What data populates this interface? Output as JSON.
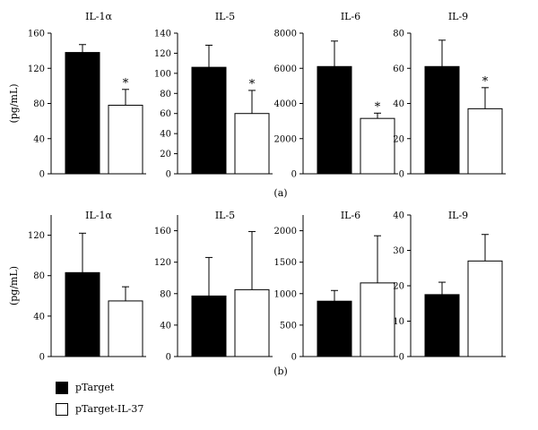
{
  "legend": {
    "items": [
      {
        "label": "pTarget",
        "color": "#000000"
      },
      {
        "label": "pTarget-IL-37",
        "color": "#ffffff"
      }
    ]
  },
  "panel_labels": [
    "(a)",
    "(b)"
  ],
  "chart_data": [
    {
      "type": "bar",
      "panel": "(a)",
      "title": "IL-1α",
      "ylabel": "(pg/mL)",
      "categories": [
        "pTarget",
        "pTarget-IL-37"
      ],
      "values": [
        138,
        78
      ],
      "errors": [
        9,
        18
      ],
      "ylim": [
        0,
        160
      ],
      "yticks": [
        0,
        40,
        80,
        120,
        160
      ],
      "significant": [
        false,
        true
      ]
    },
    {
      "type": "bar",
      "panel": "(a)",
      "title": "IL-5",
      "ylabel": "",
      "categories": [
        "pTarget",
        "pTarget-IL-37"
      ],
      "values": [
        106,
        60
      ],
      "errors": [
        22,
        23
      ],
      "ylim": [
        0,
        140
      ],
      "yticks": [
        0,
        20,
        40,
        60,
        80,
        100,
        120,
        140
      ],
      "significant": [
        false,
        true
      ]
    },
    {
      "type": "bar",
      "panel": "(a)",
      "title": "IL-6",
      "ylabel": "",
      "categories": [
        "pTarget",
        "pTarget-IL-37"
      ],
      "values": [
        6100,
        3150
      ],
      "errors": [
        1450,
        300
      ],
      "ylim": [
        0,
        8000
      ],
      "yticks": [
        0,
        2000,
        4000,
        6000,
        8000
      ],
      "significant": [
        false,
        true
      ]
    },
    {
      "type": "bar",
      "panel": "(a)",
      "title": "IL-9",
      "ylabel": "",
      "categories": [
        "pTarget",
        "pTarget-IL-37"
      ],
      "values": [
        61,
        37
      ],
      "errors": [
        15,
        12
      ],
      "ylim": [
        0,
        80
      ],
      "yticks": [
        0,
        20,
        40,
        60,
        80
      ],
      "significant": [
        false,
        true
      ]
    },
    {
      "type": "bar",
      "panel": "(b)",
      "title": "IL-1α",
      "ylabel": "(pg/mL)",
      "categories": [
        "pTarget",
        "pTarget-IL-37"
      ],
      "values": [
        83,
        55
      ],
      "errors": [
        39,
        14
      ],
      "ylim": [
        0,
        140
      ],
      "yticks": [
        0,
        40,
        80,
        120
      ],
      "significant": [
        false,
        false
      ]
    },
    {
      "type": "bar",
      "panel": "(b)",
      "title": "IL-5",
      "ylabel": "",
      "categories": [
        "pTarget",
        "pTarget-IL-37"
      ],
      "values": [
        77,
        85
      ],
      "errors": [
        49,
        74
      ],
      "ylim": [
        0,
        180
      ],
      "yticks": [
        0,
        40,
        80,
        120,
        160
      ],
      "significant": [
        false,
        false
      ]
    },
    {
      "type": "bar",
      "panel": "(b)",
      "title": "IL-6",
      "ylabel": "",
      "categories": [
        "pTarget",
        "pTarget-IL-37"
      ],
      "values": [
        880,
        1170
      ],
      "errors": [
        170,
        750
      ],
      "ylim": [
        0,
        2250
      ],
      "yticks": [
        0,
        500,
        1000,
        1500,
        2000
      ],
      "significant": [
        false,
        false
      ]
    },
    {
      "type": "bar",
      "panel": "(b)",
      "title": "IL-9",
      "ylabel": "",
      "categories": [
        "pTarget",
        "pTarget-IL-37"
      ],
      "values": [
        17.5,
        27
      ],
      "errors": [
        3.5,
        7.5
      ],
      "ylim": [
        0,
        40
      ],
      "yticks": [
        0,
        10,
        20,
        30,
        40
      ],
      "significant": [
        false,
        false
      ]
    }
  ]
}
